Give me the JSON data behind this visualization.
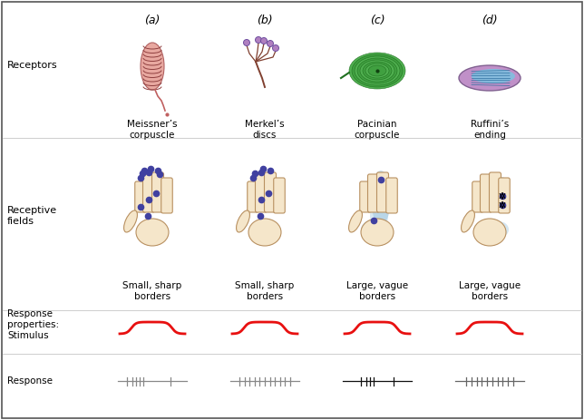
{
  "background_color": "#ffffff",
  "receptor_labels": [
    "Meissner’s\ncorpuscle",
    "Merkel’s\ndiscs",
    "Pacinian\ncorpuscle",
    "Ruffini’s\nending"
  ],
  "field_labels": [
    "Small, sharp\nborders",
    "Small, sharp\nborders",
    "Large, vague\nborders",
    "Large, vague\nborders"
  ],
  "col_letters": [
    "(a)",
    "(b)",
    "(c)",
    "(d)"
  ],
  "hand_skin_color": "#f5e6ca",
  "hand_outline_color": "#b89060",
  "dot_color": "#4040a0",
  "blue_fill": "#a0c8e0",
  "stimulus_color": "#e81010",
  "response_color_a": "#888888",
  "response_color_b": "#888888",
  "response_color_c": "#111111",
  "response_color_d": "#666666"
}
